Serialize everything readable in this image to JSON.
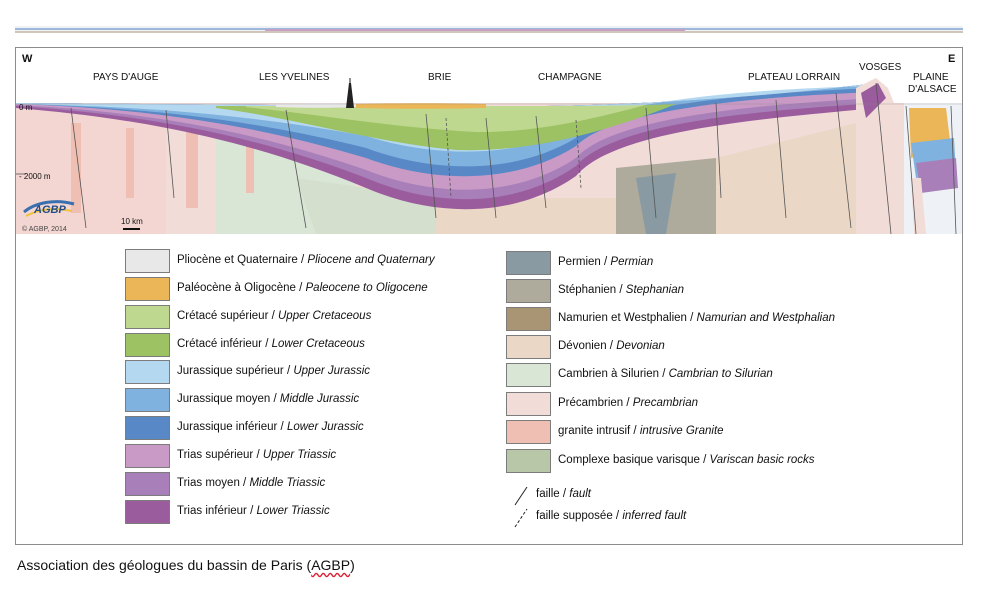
{
  "section": {
    "west_label": "W",
    "east_label": "E",
    "regions": [
      "PAYS D'AUGE",
      "LES YVELINES",
      "BRIE",
      "CHAMPAGNE",
      "PLATEAU LORRAIN",
      "VOSGES",
      "PLAINE",
      "D'ALSACE"
    ],
    "depth_labels": [
      "0 m",
      "- 2000 m"
    ],
    "scale_label": "10 km",
    "logo_text": "AGBP",
    "copyright": "© AGBP, 2014"
  },
  "legend": {
    "left": [
      {
        "fr": "Pliocène et Quaternaire",
        "en": "Pliocene and Quaternary",
        "color": "#e8e8e8"
      },
      {
        "fr": "Paléocène à Oligocène",
        "en": "Paleocene to Oligocene",
        "color": "#ebb657"
      },
      {
        "fr": "Crétacé supérieur",
        "en": "Upper Cretaceous",
        "color": "#bfd88f"
      },
      {
        "fr": "Crétacé inférieur",
        "en": "Lower Cretaceous",
        "color": "#9cc263"
      },
      {
        "fr": "Jurassique supérieur",
        "en": "Upper Jurassic",
        "color": "#b4d8f0"
      },
      {
        "fr": "Jurassique moyen",
        "en": "Middle Jurassic",
        "color": "#7fb2de"
      },
      {
        "fr": "Jurassique inférieur",
        "en": "Lower Jurassic",
        "color": "#5888c6"
      },
      {
        "fr": "Trias supérieur",
        "en": "Upper Triassic",
        "color": "#c99ac6"
      },
      {
        "fr": "Trias moyen",
        "en": "Middle Triassic",
        "color": "#a87fb8"
      },
      {
        "fr": "Trias inférieur",
        "en": "Lower Triassic",
        "color": "#9a5c9c"
      }
    ],
    "right": [
      {
        "fr": "Permien",
        "en": "Permian",
        "color": "#8a9aa2"
      },
      {
        "fr": "Stéphanien",
        "en": "Stephanian",
        "color": "#aeaa9c"
      },
      {
        "fr": "Namurien et Westphalien",
        "en": "Namurian and Westphalian",
        "color": "#a99474"
      },
      {
        "fr": "Dévonien",
        "en": "Devonian",
        "color": "#ead7c6"
      },
      {
        "fr": "Cambrien à Silurien",
        "en": "Cambrian to Silurian",
        "color": "#d9e6d6"
      },
      {
        "fr": "Précambrien",
        "en": "Precambrian",
        "color": "#f2dcd8"
      },
      {
        "fr": "granite intrusif",
        "en": "intrusive Granite",
        "color": "#eebfb2"
      },
      {
        "fr": "Complexe basique varisque",
        "en": "Variscan basic rocks",
        "color": "#b7c7a8"
      }
    ],
    "faults": [
      {
        "fr": "faille",
        "en": "fault"
      },
      {
        "fr": "faille supposée",
        "en": "inferred fault"
      }
    ]
  },
  "caption": {
    "prefix": "Association des géologues du bassin de Paris (",
    "acronym": "AGBP",
    "suffix": ")"
  }
}
